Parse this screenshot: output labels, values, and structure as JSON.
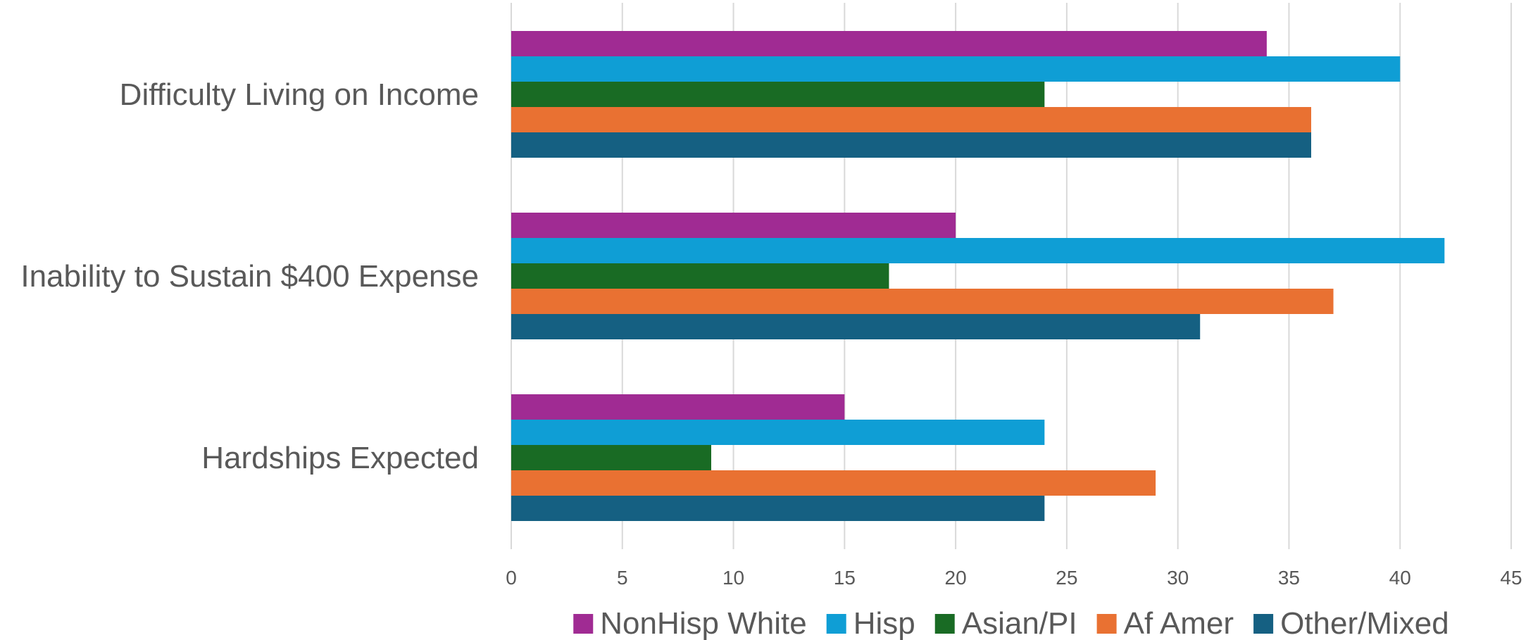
{
  "chart_data": {
    "type": "bar",
    "orientation": "horizontal",
    "categories": [
      "Difficulty Living on Income",
      "Inability to Sustain $400 Expense",
      "Hardships Expected"
    ],
    "series": [
      {
        "name": "NonHisp White",
        "color": "#A02B93",
        "values": [
          34,
          20,
          15
        ]
      },
      {
        "name": "Hisp",
        "color": "#0F9ED5",
        "values": [
          40,
          42,
          24
        ]
      },
      {
        "name": "Asian/PI",
        "color": "#196B24",
        "values": [
          24,
          17,
          9
        ]
      },
      {
        "name": "Af Amer",
        "color": "#E97132",
        "values": [
          36,
          37,
          29
        ]
      },
      {
        "name": "Other/Mixed",
        "color": "#156082",
        "values": [
          36,
          31,
          24
        ]
      }
    ],
    "xlim": [
      0,
      45
    ],
    "xticks": [
      0,
      5,
      10,
      15,
      20,
      25,
      30,
      35,
      40,
      45
    ],
    "grid": true,
    "legend": "bottom",
    "title": "",
    "xlabel": "",
    "ylabel": ""
  }
}
